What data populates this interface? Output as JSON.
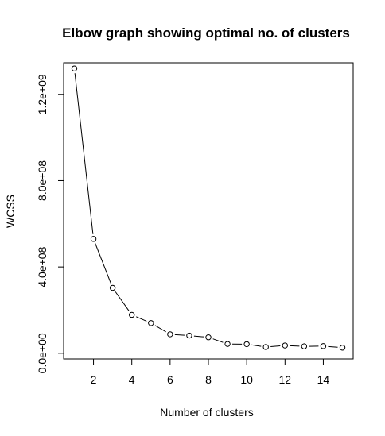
{
  "chart_data": {
    "type": "line",
    "title": "Elbow graph showing optimal no. of clusters",
    "xlabel": "Number of clusters",
    "ylabel": "WCSS",
    "x": [
      1,
      2,
      3,
      4,
      5,
      6,
      7,
      8,
      9,
      10,
      11,
      12,
      13,
      14,
      15
    ],
    "series": [
      {
        "values": [
          1320000000,
          530000000,
          303000000,
          178000000,
          140000000,
          88000000,
          82000000,
          74000000,
          43000000,
          42000000,
          29000000,
          36000000,
          32000000,
          33000000,
          26000000
        ]
      }
    ],
    "xticks": [
      2,
      4,
      6,
      8,
      10,
      12,
      14
    ],
    "xtick_labels": [
      "2",
      "4",
      "6",
      "8",
      "10",
      "12",
      "14"
    ],
    "yticks": [
      0,
      400000000,
      800000000,
      1200000000
    ],
    "ytick_labels": [
      "0.0e+00",
      "4.0e+08",
      "8.0e+08",
      "1.2e+09"
    ],
    "xlim": [
      0.44,
      15.56
    ],
    "ylim": [
      -26400000,
      1346400000
    ],
    "grid": false,
    "legend": "none",
    "line_style": "points-and-lines with gaps",
    "colors": {
      "line": "#000000",
      "point_fill": "#ffffff",
      "point_stroke": "#000000"
    }
  }
}
